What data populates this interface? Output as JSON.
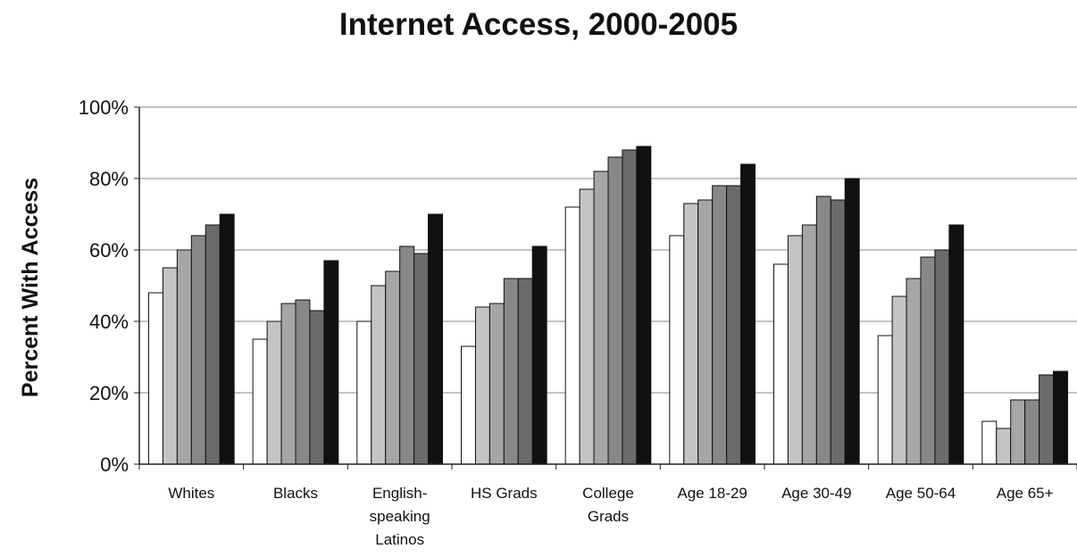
{
  "chart_data": {
    "type": "bar",
    "title": "Internet Access, 2000-2005",
    "xlabel": "",
    "ylabel": "Percent With Access",
    "ylim": [
      0,
      100
    ],
    "yticks": [
      "0%",
      "20%",
      "40%",
      "60%",
      "80%",
      "100%"
    ],
    "grid": true,
    "legend": "none",
    "categories": [
      [
        "Whites"
      ],
      [
        "Blacks"
      ],
      [
        "English-",
        "speaking",
        "Latinos"
      ],
      [
        "HS Grads"
      ],
      [
        "College",
        "Grads"
      ],
      [
        "Age 18-29"
      ],
      [
        "Age 30-49"
      ],
      [
        "Age 50-64"
      ],
      [
        "Age 65+"
      ]
    ],
    "series_colors": [
      "#ffffff",
      "#c4c4c4",
      "#a6a6a6",
      "#888888",
      "#6b6b6b",
      "#111111"
    ],
    "series": [
      {
        "values": [
          48,
          35,
          40,
          33,
          72,
          64,
          56,
          36,
          12
        ]
      },
      {
        "values": [
          55,
          40,
          50,
          44,
          77,
          73,
          64,
          47,
          10
        ]
      },
      {
        "values": [
          60,
          45,
          54,
          45,
          82,
          74,
          67,
          52,
          18
        ]
      },
      {
        "values": [
          64,
          46,
          61,
          52,
          86,
          78,
          75,
          58,
          18
        ]
      },
      {
        "values": [
          67,
          43,
          59,
          52,
          88,
          78,
          74,
          60,
          25
        ]
      },
      {
        "values": [
          70,
          57,
          70,
          61,
          89,
          84,
          80,
          67,
          26
        ]
      }
    ]
  }
}
